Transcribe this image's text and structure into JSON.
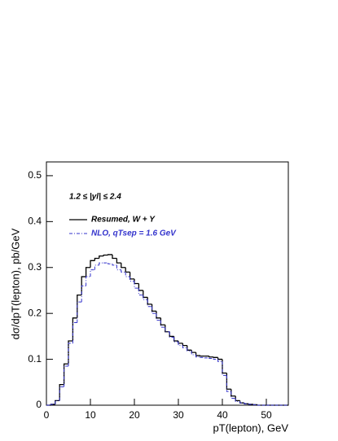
{
  "chart_data": {
    "type": "step-histogram",
    "y_label": "dσ/dpT(lepton), pb/GeV",
    "x_label": "pT(lepton), GeV",
    "annotation": "1.2 ≤ |yl| ≤ 2.4",
    "bins": [
      0,
      1,
      2,
      3,
      4,
      5,
      6,
      7,
      8,
      9,
      10,
      11,
      12,
      13,
      14,
      15,
      16,
      17,
      18,
      19,
      20,
      21,
      22,
      23,
      24,
      25,
      26,
      27,
      28,
      29,
      30,
      31,
      32,
      33,
      34,
      35,
      36,
      37,
      38,
      39,
      40,
      41,
      42,
      43,
      44,
      45,
      46,
      47,
      48,
      49,
      50,
      51,
      52,
      53,
      54,
      55
    ],
    "series": [
      {
        "name": "Resumed, W + Y",
        "color": "#000000",
        "dash": "none",
        "values": [
          0,
          0.002,
          0.01,
          0.045,
          0.09,
          0.14,
          0.19,
          0.24,
          0.28,
          0.3,
          0.315,
          0.32,
          0.325,
          0.327,
          0.328,
          0.32,
          0.31,
          0.3,
          0.29,
          0.275,
          0.265,
          0.25,
          0.235,
          0.22,
          0.205,
          0.19,
          0.175,
          0.16,
          0.15,
          0.14,
          0.135,
          0.13,
          0.12,
          0.115,
          0.108,
          0.107,
          0.107,
          0.105,
          0.104,
          0.1,
          0.07,
          0.035,
          0.02,
          0.01,
          0.005,
          0.003,
          0.002,
          0.001,
          0,
          0,
          0,
          0,
          0,
          0,
          0
        ]
      },
      {
        "name": "NLO, qTsep = 1.6 GeV",
        "color": "#3333cc",
        "dash": "4 2 1 2",
        "values": [
          0,
          0.002,
          0.01,
          0.04,
          0.085,
          0.135,
          0.18,
          0.225,
          0.26,
          0.28,
          0.295,
          0.305,
          0.31,
          0.31,
          0.308,
          0.305,
          0.295,
          0.29,
          0.28,
          0.27,
          0.255,
          0.24,
          0.23,
          0.215,
          0.2,
          0.185,
          0.17,
          0.16,
          0.148,
          0.138,
          0.13,
          0.125,
          0.118,
          0.11,
          0.105,
          0.104,
          0.103,
          0.102,
          0.1,
          0.095,
          0.065,
          0.03,
          0.015,
          0.008,
          0.005,
          0.003,
          0.002,
          0.001,
          0,
          0,
          0,
          0,
          0,
          0,
          0
        ]
      }
    ],
    "xlim": [
      0,
      55
    ],
    "xticks": [
      0,
      10,
      20,
      30,
      40,
      50
    ],
    "ylim": [
      0,
      0.53
    ],
    "yticks": [
      0,
      0.1,
      0.2,
      0.3,
      0.4,
      0.5
    ],
    "grid": false
  }
}
